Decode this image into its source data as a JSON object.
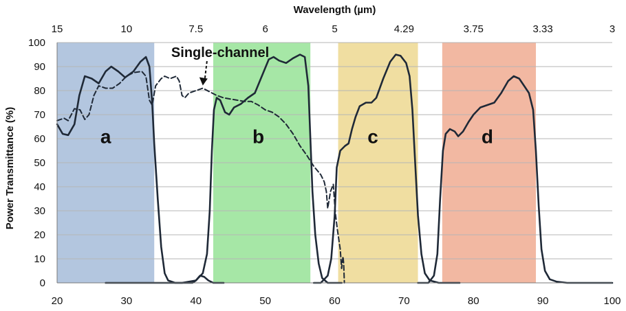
{
  "chart_data": {
    "type": "line",
    "xlabel": "",
    "ylabel": "Power Transmittance  (%)",
    "top_axis_label": "Wavelength (µm)",
    "xlim": [
      20,
      100
    ],
    "ylim": [
      0,
      100
    ],
    "x_ticks": [
      20,
      30,
      40,
      50,
      60,
      70,
      80,
      90,
      100
    ],
    "y_ticks": [
      0,
      10,
      20,
      30,
      40,
      50,
      60,
      70,
      80,
      90,
      100
    ],
    "top_ticks": [
      {
        "label": "15",
        "x": 20
      },
      {
        "label": "10",
        "x": 30
      },
      {
        "label": "7.5",
        "x": 40
      },
      {
        "label": "6",
        "x": 50
      },
      {
        "label": "5",
        "x": 60
      },
      {
        "label": "4.29",
        "x": 70
      },
      {
        "label": "3.75",
        "x": 80
      },
      {
        "label": "3.33",
        "x": 90
      },
      {
        "label": "3",
        "x": 100
      }
    ],
    "grid": true,
    "bands": [
      {
        "label": "a",
        "x_start": 20,
        "x_end": 34,
        "color": "#b3c6df",
        "label_x": 27,
        "label_y": 61
      },
      {
        "label": "b",
        "x_start": 42.5,
        "x_end": 56.5,
        "color": "#a6e7a6",
        "label_x": 49,
        "label_y": 61
      },
      {
        "label": "c",
        "x_start": 60.5,
        "x_end": 72,
        "color": "#f0dea1",
        "label_x": 65.5,
        "label_y": 61
      },
      {
        "label": "d",
        "x_start": 75.5,
        "x_end": 89,
        "color": "#f2b8a2",
        "label_x": 82,
        "label_y": 61
      }
    ],
    "annotation": {
      "text": "Single-channel",
      "x": 43.5,
      "y": 94,
      "arrow_to": [
        41,
        81
      ]
    },
    "series": [
      {
        "id": "filter-a",
        "style": "solid",
        "color": "#1f2937",
        "points": [
          [
            20,
            66
          ],
          [
            20.8,
            62
          ],
          [
            21.6,
            61.5
          ],
          [
            22.5,
            66
          ],
          [
            23.2,
            78
          ],
          [
            24,
            86
          ],
          [
            25,
            85
          ],
          [
            26,
            83
          ],
          [
            27,
            88
          ],
          [
            27.8,
            90
          ],
          [
            28.8,
            88
          ],
          [
            29.8,
            85.5
          ],
          [
            31,
            88
          ],
          [
            32,
            92
          ],
          [
            32.8,
            94
          ],
          [
            33.3,
            90
          ],
          [
            33.7,
            75
          ],
          [
            34,
            58
          ],
          [
            34.5,
            35
          ],
          [
            35,
            15
          ],
          [
            35.5,
            4
          ],
          [
            36,
            1
          ],
          [
            37,
            0
          ],
          [
            38,
            0
          ],
          [
            39,
            0
          ],
          [
            39.5,
            0
          ],
          [
            40,
            1
          ],
          [
            40.6,
            3
          ],
          [
            41.2,
            2.5
          ],
          [
            41.8,
            1
          ],
          [
            42.5,
            0
          ],
          [
            44,
            0
          ]
        ]
      },
      {
        "id": "filter-b",
        "style": "solid",
        "color": "#1f2937",
        "points": [
          [
            27,
            0
          ],
          [
            38,
            0
          ],
          [
            40,
            1
          ],
          [
            41,
            4
          ],
          [
            41.6,
            12
          ],
          [
            42,
            30
          ],
          [
            42.3,
            55
          ],
          [
            42.6,
            72
          ],
          [
            43,
            77
          ],
          [
            43.5,
            76
          ],
          [
            44.2,
            71
          ],
          [
            44.8,
            70
          ],
          [
            45.5,
            73
          ],
          [
            46.5,
            74.5
          ],
          [
            47.5,
            77
          ],
          [
            48.5,
            79
          ],
          [
            49.5,
            86
          ],
          [
            50.5,
            93
          ],
          [
            51.2,
            94
          ],
          [
            52,
            92.5
          ],
          [
            53,
            91.5
          ],
          [
            54,
            93.5
          ],
          [
            55,
            95
          ],
          [
            55.7,
            94
          ],
          [
            56.2,
            82
          ],
          [
            56.5,
            60
          ],
          [
            56.8,
            38
          ],
          [
            57.2,
            20
          ],
          [
            57.7,
            8
          ],
          [
            58.2,
            2
          ],
          [
            59,
            0
          ],
          [
            61,
            0
          ]
        ]
      },
      {
        "id": "filter-c",
        "style": "solid",
        "color": "#1f2937",
        "points": [
          [
            57,
            0
          ],
          [
            58,
            0
          ],
          [
            59,
            3
          ],
          [
            59.5,
            10
          ],
          [
            60,
            28
          ],
          [
            60.3,
            48
          ],
          [
            60.8,
            55
          ],
          [
            61.5,
            57
          ],
          [
            62,
            58
          ],
          [
            62.5,
            64
          ],
          [
            63,
            69
          ],
          [
            63.6,
            73.5
          ],
          [
            64.5,
            75
          ],
          [
            65.3,
            75
          ],
          [
            66,
            77
          ],
          [
            67,
            85
          ],
          [
            68,
            92
          ],
          [
            68.8,
            95
          ],
          [
            69.5,
            94.5
          ],
          [
            70.3,
            91.5
          ],
          [
            70.8,
            86
          ],
          [
            71.2,
            72
          ],
          [
            71.6,
            50
          ],
          [
            72,
            28
          ],
          [
            72.5,
            12
          ],
          [
            73,
            4
          ],
          [
            73.7,
            1
          ],
          [
            75,
            0
          ],
          [
            78,
            0
          ]
        ]
      },
      {
        "id": "filter-d",
        "style": "solid",
        "color": "#1f2937",
        "points": [
          [
            72,
            0
          ],
          [
            73.5,
            0
          ],
          [
            74.3,
            3
          ],
          [
            74.8,
            12
          ],
          [
            75.2,
            35
          ],
          [
            75.6,
            55
          ],
          [
            76,
            62
          ],
          [
            76.6,
            64
          ],
          [
            77.3,
            63
          ],
          [
            77.8,
            61
          ],
          [
            78.5,
            63
          ],
          [
            79.3,
            67
          ],
          [
            80,
            70
          ],
          [
            81,
            73
          ],
          [
            82,
            74
          ],
          [
            83,
            75
          ],
          [
            84,
            79
          ],
          [
            85,
            84
          ],
          [
            85.8,
            86
          ],
          [
            86.6,
            85
          ],
          [
            87.3,
            82
          ],
          [
            88,
            79
          ],
          [
            88.6,
            72
          ],
          [
            89,
            55
          ],
          [
            89.4,
            32
          ],
          [
            89.8,
            14
          ],
          [
            90.3,
            5
          ],
          [
            91,
            1.5
          ],
          [
            92,
            0.5
          ],
          [
            93.5,
            0
          ],
          [
            100,
            0
          ]
        ]
      },
      {
        "id": "single-channel",
        "style": "dashed",
        "color": "#1f2937",
        "points": [
          [
            20,
            67.5
          ],
          [
            21,
            68.5
          ],
          [
            21.6,
            67.5
          ],
          [
            22.5,
            72.5
          ],
          [
            23.3,
            72
          ],
          [
            24,
            68
          ],
          [
            24.6,
            70
          ],
          [
            25.3,
            78
          ],
          [
            26,
            82
          ],
          [
            27,
            81
          ],
          [
            28,
            81
          ],
          [
            29,
            83
          ],
          [
            30,
            86
          ],
          [
            31,
            87.5
          ],
          [
            32.2,
            88
          ],
          [
            32.8,
            86
          ],
          [
            33.3,
            76
          ],
          [
            33.7,
            74
          ],
          [
            34.2,
            82
          ],
          [
            35,
            85
          ],
          [
            35.5,
            86
          ],
          [
            36.3,
            85
          ],
          [
            37.2,
            86
          ],
          [
            37.6,
            84
          ],
          [
            38,
            78
          ],
          [
            38.4,
            77
          ],
          [
            39,
            79
          ],
          [
            40,
            80
          ],
          [
            41,
            81
          ],
          [
            42,
            79.5
          ],
          [
            43,
            78
          ],
          [
            44,
            77
          ],
          [
            45,
            76.5
          ],
          [
            46,
            76
          ],
          [
            47,
            75.5
          ],
          [
            48,
            75.5
          ],
          [
            49,
            74
          ],
          [
            50,
            72
          ],
          [
            51,
            71
          ],
          [
            52,
            69
          ],
          [
            53,
            66
          ],
          [
            54,
            62
          ],
          [
            55,
            57
          ],
          [
            56,
            53
          ],
          [
            57,
            48.5
          ],
          [
            58,
            45
          ],
          [
            58.5,
            42
          ],
          [
            58.8,
            38
          ],
          [
            59,
            31
          ],
          [
            59.4,
            38
          ],
          [
            59.8,
            41
          ],
          [
            60.1,
            29
          ],
          [
            60.4,
            22
          ],
          [
            60.8,
            14
          ],
          [
            61,
            6
          ],
          [
            61.2,
            11
          ],
          [
            61.3,
            8
          ],
          [
            61.4,
            0
          ]
        ]
      }
    ]
  }
}
